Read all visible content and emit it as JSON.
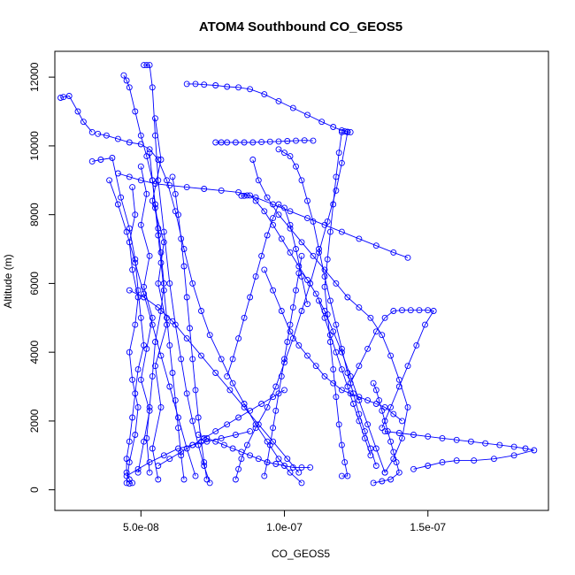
{
  "chart_data": {
    "type": "line",
    "title": "ATOM4 Southbound CO_GEOS5",
    "xlabel": "CO_GEOS5",
    "ylabel": "Altitude (m)",
    "xlim": [
      2e-08,
      1.92e-07
    ],
    "ylim": [
      -600,
      12750
    ],
    "x_ticks": [
      {
        "value": 5e-08,
        "label": "5.0e-08"
      },
      {
        "value": 1e-07,
        "label": "1.0e-07"
      },
      {
        "value": 1.5e-07,
        "label": "1.5e-07"
      }
    ],
    "y_ticks": [
      {
        "value": 0,
        "label": "0"
      },
      {
        "value": 2000,
        "label": "2000"
      },
      {
        "value": 4000,
        "label": "4000"
      },
      {
        "value": 6000,
        "label": "6000"
      },
      {
        "value": 8000,
        "label": "8000"
      },
      {
        "value": 10000,
        "label": "10000"
      },
      {
        "value": 12000,
        "label": "12000"
      }
    ],
    "grid": false,
    "marker": "open-circle",
    "color": "#0000ff",
    "series": [
      {
        "x": [
          2.2e-08,
          2.3e-08,
          2.5e-08,
          2.8e-08,
          3e-08,
          3.3e-08
        ],
        "y": [
          11400,
          11420,
          11450,
          11000,
          10700,
          10400
        ]
      },
      {
        "x": [
          3.3e-08,
          3.6e-08,
          4e-08,
          4.3e-08,
          4.6e-08,
          4.8e-08,
          4.9e-08,
          5e-08,
          5.1e-08,
          4.9e-08,
          4.8e-08,
          4.7e-08,
          4.6e-08,
          4.5e-08,
          4.5e-08,
          4.6e-08,
          4.7e-08,
          4.6e-08
        ],
        "y": [
          9550,
          9600,
          9650,
          8500,
          7600,
          6700,
          5800,
          5000,
          4200,
          3500,
          2800,
          2100,
          1400,
          900,
          500,
          300,
          200,
          180
        ]
      },
      {
        "x": [
          4.4e-08,
          4.5e-08,
          4.6e-08,
          4.8e-08,
          5e-08,
          5.2e-08,
          5.4e-08,
          5.5e-08,
          5.6e-08,
          5.7e-08,
          5.8e-08,
          5.7e-08,
          5.5e-08,
          5.4e-08,
          5.3e-08,
          5.2e-08,
          5.3e-08
        ],
        "y": [
          12050,
          11900,
          11700,
          11000,
          10300,
          9700,
          9000,
          8300,
          7600,
          6900,
          6000,
          5200,
          4300,
          3300,
          2400,
          1500,
          500
        ]
      },
      {
        "x": [
          5.1e-08,
          5.2e-08,
          5.3e-08,
          5.4e-08,
          5.5e-08,
          5.6e-08,
          5.8e-08,
          6e-08,
          6.2e-08,
          6.4e-08,
          6.6e-08,
          6.8e-08,
          7e-08,
          7.2e-08,
          7.4e-08
        ],
        "y": [
          12350,
          12350,
          12350,
          11700,
          10300,
          9000,
          7500,
          6000,
          4800,
          3800,
          2800,
          2000,
          1300,
          700,
          200
        ]
      },
      {
        "x": [
          6.6e-08,
          6.9e-08,
          7.2e-08,
          7.6e-08,
          8e-08,
          8.4e-08,
          8.8e-08,
          9.3e-08,
          9.8e-08,
          1.03e-07,
          1.08e-07,
          1.13e-07,
          1.17e-07,
          1.2e-07,
          1.21e-07,
          1.22e-07,
          1.23e-07
        ],
        "y": [
          11800,
          11800,
          11780,
          11760,
          11720,
          11700,
          11650,
          11500,
          11300,
          11100,
          10900,
          10700,
          10550,
          10450,
          10420,
          10410,
          10400
        ]
      },
      {
        "x": [
          1.22e-07,
          1.2e-07,
          1.18e-07,
          1.15e-07,
          1.12e-07,
          1.09e-07,
          1.06e-07,
          1.03e-07,
          1e-07,
          9.7e-08,
          9.4e-08,
          9e-08,
          8.7e-08,
          8.5e-08,
          8.4e-08,
          8.3e-08
        ],
        "y": [
          10400,
          9500,
          8700,
          7800,
          6900,
          6000,
          5200,
          4400,
          3700,
          3000,
          2400,
          1800,
          1300,
          900,
          600,
          300
        ]
      },
      {
        "x": [
          8.5e-08,
          8.6e-08,
          8.7e-08,
          8.8e-08,
          9e-08,
          9.3e-08,
          9.6e-08,
          9.9e-08,
          1.02e-07,
          1.05e-07,
          1.08e-07,
          1.11e-07,
          1.14e-07,
          1.17e-07,
          1.2e-07,
          1.23e-07,
          1.26e-07,
          1.29e-07,
          1.32e-07,
          1.35e-07
        ],
        "y": [
          8550,
          8550,
          8560,
          8560,
          8400,
          8100,
          7700,
          7300,
          6900,
          6500,
          6100,
          5700,
          5200,
          4600,
          4000,
          3300,
          2600,
          1900,
          1200,
          500
        ]
      },
      {
        "x": [
          1.35e-07,
          1.38e-07,
          1.41e-07,
          1.43e-07,
          1.4e-07,
          1.37e-07,
          1.34e-07,
          1.3e-07,
          1.26e-07,
          1.22e-07,
          1.18e-07,
          1.14e-07,
          1.1e-07,
          1.06e-07,
          1.02e-07,
          9.8e-08,
          9.4e-08,
          9.1e-08,
          8.9e-08
        ],
        "y": [
          500,
          900,
          1500,
          2400,
          3200,
          3900,
          4500,
          5000,
          5300,
          5600,
          6000,
          6400,
          6800,
          7200,
          7600,
          8000,
          8500,
          9000,
          9600
        ]
      },
      {
        "x": [
          1.35e-07,
          1.4e-07,
          1.45e-07,
          1.5e-07,
          1.55e-07,
          1.6e-07,
          1.65e-07,
          1.7e-07,
          1.75e-07,
          1.8e-07,
          1.84e-07,
          1.87e-07,
          1.8e-07,
          1.73e-07,
          1.66e-07,
          1.6e-07,
          1.55e-07,
          1.5e-07,
          1.45e-07
        ],
        "y": [
          1700,
          1650,
          1600,
          1550,
          1500,
          1450,
          1400,
          1350,
          1300,
          1250,
          1200,
          1150,
          1000,
          900,
          850,
          850,
          800,
          700,
          600
        ]
      },
      {
        "x": [
          1.23e-07,
          1.26e-07,
          1.29e-07,
          1.32e-07,
          1.35e-07,
          1.38e-07,
          1.41e-07,
          1.44e-07,
          1.47e-07,
          1.5e-07,
          1.52e-07,
          1.49e-07,
          1.46e-07,
          1.43e-07,
          1.4e-07,
          1.37e-07,
          1.34e-07
        ],
        "y": [
          3100,
          3600,
          4100,
          4600,
          5000,
          5200,
          5220,
          5220,
          5220,
          5220,
          5200,
          4800,
          4200,
          3600,
          3000,
          2400,
          1800
        ]
      },
      {
        "x": [
          4.2e-08,
          4.6e-08,
          5e-08,
          5.5e-08,
          6e-08,
          6.6e-08,
          7.2e-08,
          7.8e-08,
          8.4e-08,
          9e-08,
          9.6e-08,
          1.02e-07,
          1.08e-07,
          1.14e-07,
          1.2e-07,
          1.26e-07,
          1.32e-07,
          1.38e-07,
          1.43e-07
        ],
        "y": [
          9200,
          9100,
          9000,
          8900,
          8850,
          8800,
          8750,
          8700,
          8650,
          8500,
          8300,
          8100,
          7900,
          7700,
          7500,
          7300,
          7100,
          6900,
          6750
        ]
      },
      {
        "x": [
          3.5e-08,
          3.8e-08,
          4.2e-08,
          4.6e-08,
          5e-08,
          5.3e-08,
          5.6e-08,
          5.9e-08,
          6.2e-08,
          6.5e-08,
          6.8e-08,
          7.1e-08,
          7.4e-08,
          7.8e-08,
          8.2e-08,
          8.6e-08,
          9e-08,
          9.4e-08,
          9.8e-08,
          1.02e-07,
          1.06e-07
        ],
        "y": [
          10350,
          10300,
          10200,
          10100,
          10050,
          9900,
          9600,
          9000,
          8100,
          7000,
          6000,
          5200,
          4500,
          3800,
          3100,
          2500,
          1900,
          1400,
          900,
          500,
          200
        ]
      },
      {
        "x": [
          5.3e-08,
          5.4e-08,
          5.5e-08,
          5.6e-08,
          5.7e-08,
          5.8e-08,
          5.9e-08,
          6e-08,
          6.1e-08,
          6.2e-08,
          6.3e-08,
          6.4e-08,
          6.5e-08
        ],
        "y": [
          9800,
          9000,
          8200,
          7400,
          6600,
          5800,
          5000,
          4200,
          3400,
          2600,
          1800,
          1000,
          300
        ]
      },
      {
        "x": [
          6.1e-08,
          6.2e-08,
          6.3e-08,
          6.4e-08,
          6.5e-08,
          6.6e-08,
          6.7e-08,
          6.8e-08,
          6.9e-08,
          7e-08,
          7.1e-08,
          7.2e-08,
          7.3e-08
        ],
        "y": [
          9100,
          8600,
          8000,
          7300,
          6500,
          5600,
          4700,
          3800,
          2900,
          2100,
          1400,
          800,
          300
        ]
      },
      {
        "x": [
          9.8e-08,
          1e-07,
          1.02e-07,
          1.04e-07,
          1.06e-07,
          1.08e-07,
          1.1e-07,
          1.12e-07,
          1.14e-07,
          1.16e-07,
          1.18e-07,
          1.2e-07,
          1.22e-07,
          1.24e-07,
          1.26e-07,
          1.28e-07,
          1.3e-07,
          1.32e-07
        ],
        "y": [
          9900,
          9800,
          9700,
          9400,
          9000,
          8400,
          7800,
          7000,
          6200,
          5500,
          4800,
          4100,
          3400,
          2800,
          2200,
          1700,
          1200,
          700
        ]
      },
      {
        "x": [
          8e-08,
          8.2e-08,
          8.4e-08,
          8.6e-08,
          8.8e-08,
          9e-08,
          9.2e-08,
          9.4e-08,
          9.6e-08,
          9.8e-08,
          1e-07,
          1.02e-07,
          1.04e-07,
          1.06e-07,
          1.08e-07
        ],
        "y": [
          3300,
          3800,
          4400,
          5000,
          5600,
          6200,
          6800,
          7400,
          7900,
          8300,
          8200,
          7700,
          7000,
          6200,
          5400
        ]
      },
      {
        "x": [
          1.2e-07,
          1.19e-07,
          1.18e-07,
          1.17e-07,
          1.16e-07,
          1.15e-07,
          1.14e-07,
          1.15e-07,
          1.16e-07,
          1.17e-07,
          1.18e-07,
          1.19e-07,
          1.2e-07,
          1.21e-07,
          1.22e-07,
          1.2e-07
        ],
        "y": [
          10400,
          9800,
          9100,
          8300,
          7500,
          6700,
          5900,
          5100,
          4300,
          3500,
          2700,
          1900,
          1300,
          800,
          400,
          400
        ]
      },
      {
        "x": [
          9.3e-08,
          9.6e-08,
          9.9e-08,
          1.02e-07,
          1.05e-07,
          1.08e-07,
          1.11e-07,
          1.14e-07,
          1.17e-07,
          1.2e-07,
          1.23e-07,
          1.26e-07,
          1.29e-07,
          1.32e-07,
          1.35e-07,
          1.38e-07,
          1.41e-07
        ],
        "y": [
          6400,
          5800,
          5200,
          4600,
          4200,
          3900,
          3600,
          3300,
          3100,
          2900,
          2800,
          2700,
          2600,
          2500,
          2400,
          2200,
          2000
        ]
      },
      {
        "x": [
          1.06e-07,
          1.05e-07,
          1.04e-07,
          1.03e-07,
          1.02e-07,
          1.01e-07,
          1e-07,
          9.9e-08,
          9.8e-08,
          9.7e-08,
          9.6e-08,
          9.5e-08,
          9.4e-08,
          9.3e-08
        ],
        "y": [
          6800,
          6300,
          5800,
          5300,
          4800,
          4300,
          3800,
          3300,
          2800,
          2300,
          1800,
          1300,
          800,
          400
        ]
      },
      {
        "x": [
          1.31e-07,
          1.32e-07,
          1.33e-07,
          1.34e-07,
          1.35e-07,
          1.36e-07,
          1.37e-07,
          1.38e-07,
          1.39e-07,
          1.4e-07,
          1.37e-07,
          1.34e-07,
          1.31e-07
        ],
        "y": [
          3100,
          2900,
          2600,
          2300,
          2000,
          1700,
          1400,
          1100,
          800,
          500,
          300,
          250,
          200
        ]
      },
      {
        "x": [
          7.6e-08,
          7.8e-08,
          8e-08,
          8.3e-08,
          8.6e-08,
          8.9e-08,
          9.2e-08,
          9.5e-08,
          9.8e-08,
          1.01e-07,
          1.04e-07,
          1.07e-07,
          1.1e-07
        ],
        "y": [
          10100,
          10100,
          10100,
          10100,
          10100,
          10100,
          10110,
          10120,
          10130,
          10140,
          10150,
          10160,
          10150
        ]
      },
      {
        "x": [
          7e-08,
          7.3e-08,
          7.6e-08,
          7.9e-08,
          8.2e-08,
          8.5e-08,
          8.8e-08,
          9.1e-08,
          9.4e-08,
          9.7e-08,
          1e-07,
          1.03e-07,
          1.06e-07,
          1.09e-07
        ],
        "y": [
          1600,
          1500,
          1400,
          1300,
          1200,
          1100,
          1000,
          900,
          800,
          750,
          700,
          650,
          650,
          650
        ]
      },
      {
        "x": [
          4.6e-08,
          5.1e-08,
          5.6e-08,
          6.1e-08,
          6.6e-08,
          7.1e-08,
          7.6e-08,
          8.1e-08,
          8.6e-08,
          9.1e-08,
          9.6e-08,
          1.01e-07,
          1.05e-07
        ],
        "y": [
          5800,
          5600,
          5300,
          4900,
          4400,
          3900,
          3400,
          2900,
          2400,
          1900,
          1400,
          900,
          500
        ]
      },
      {
        "x": [
          5.6e-08,
          6e-08,
          6.4e-08,
          6.8e-08,
          7.2e-08,
          7.6e-08,
          8e-08,
          8.4e-08,
          8.8e-08,
          9.2e-08,
          9.6e-08,
          1e-07
        ],
        "y": [
          700,
          900,
          1100,
          1300,
          1500,
          1700,
          1900,
          2100,
          2300,
          2500,
          2700,
          2900
        ]
      },
      {
        "x": [
          4.7e-08,
          4.8e-08,
          4.6e-08,
          4.7e-08,
          4.9e-08,
          4.8e-08,
          4.6e-08,
          4.7e-08,
          4.9e-08,
          4.8e-08,
          4.6e-08,
          4.5e-08
        ],
        "y": [
          8800,
          8000,
          7200,
          6400,
          5600,
          4800,
          4000,
          3200,
          2400,
          1600,
          800,
          200
        ]
      },
      {
        "x": [
          5e-08,
          5.2e-08,
          5e-08,
          5.3e-08,
          5.1e-08,
          5.4e-08,
          5.2e-08,
          5e-08,
          5.3e-08,
          5.1e-08,
          4.9e-08
        ],
        "y": [
          9400,
          8600,
          7700,
          6800,
          5900,
          5000,
          4100,
          3200,
          2300,
          1400,
          500
        ]
      },
      {
        "x": [
          5.5e-08,
          5.7e-08,
          5.4e-08,
          5.8e-08,
          5.6e-08,
          5.9e-08,
          5.5e-08,
          5.7e-08,
          5.4e-08,
          5.6e-08
        ],
        "y": [
          10800,
          9600,
          8400,
          7200,
          6000,
          4800,
          3600,
          2400,
          1200,
          300
        ]
      },
      {
        "x": [
          3.9e-08,
          4.2e-08,
          4.5e-08,
          4.8e-08,
          5.1e-08,
          5.4e-08,
          5.7e-08,
          6e-08,
          6.3e-08,
          6.6e-08,
          6.9e-08
        ],
        "y": [
          9000,
          8300,
          7500,
          6600,
          5700,
          4800,
          3900,
          3000,
          2100,
          1200,
          400
        ]
      },
      {
        "x": [
          4.5e-08,
          4.9e-08,
          5.3e-08,
          5.8e-08,
          6.3e-08,
          6.8e-08,
          7.3e-08,
          7.8e-08,
          8.3e-08,
          8.8e-08
        ],
        "y": [
          400,
          600,
          800,
          1000,
          1200,
          1300,
          1400,
          1500,
          1600,
          1700
        ]
      },
      {
        "x": [
          1.12e-07,
          1.14e-07,
          1.16e-07,
          1.18e-07,
          1.2e-07,
          1.22e-07,
          1.24e-07,
          1.26e-07,
          1.28e-07,
          1.3e-07
        ],
        "y": [
          5500,
          5000,
          4500,
          4000,
          3500,
          3000,
          2500,
          2000,
          1500,
          1000
        ]
      }
    ]
  }
}
